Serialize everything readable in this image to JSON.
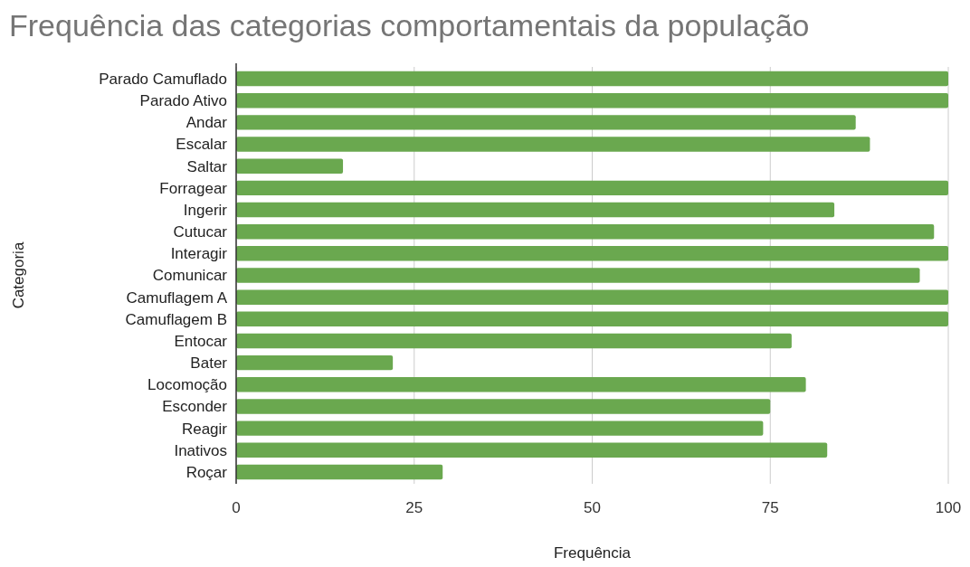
{
  "chart_data": {
    "type": "bar",
    "orientation": "horizontal",
    "title": "Frequência das categorias comportamentais da população",
    "xlabel": "Frequência",
    "ylabel": "Categoria",
    "categories": [
      "Parado Camuflado",
      "Parado Ativo",
      "Andar",
      "Escalar",
      "Saltar",
      "Forragear",
      "Ingerir",
      "Cutucar",
      "Interagir",
      "Comunicar",
      "Camuflagem A",
      "Camuflagem B",
      "Entocar",
      "Bater",
      "Locomoção",
      "Esconder",
      "Reagir",
      "Inativos",
      "Roçar"
    ],
    "values": [
      100,
      100,
      87,
      89,
      15,
      100,
      84,
      98,
      100,
      96,
      100,
      100,
      78,
      22,
      80,
      75,
      74,
      83,
      29
    ],
    "color": "#6aa84f",
    "xlim": [
      0,
      100
    ],
    "xticks": [
      0,
      25,
      50,
      75,
      100
    ],
    "grid": "x"
  }
}
